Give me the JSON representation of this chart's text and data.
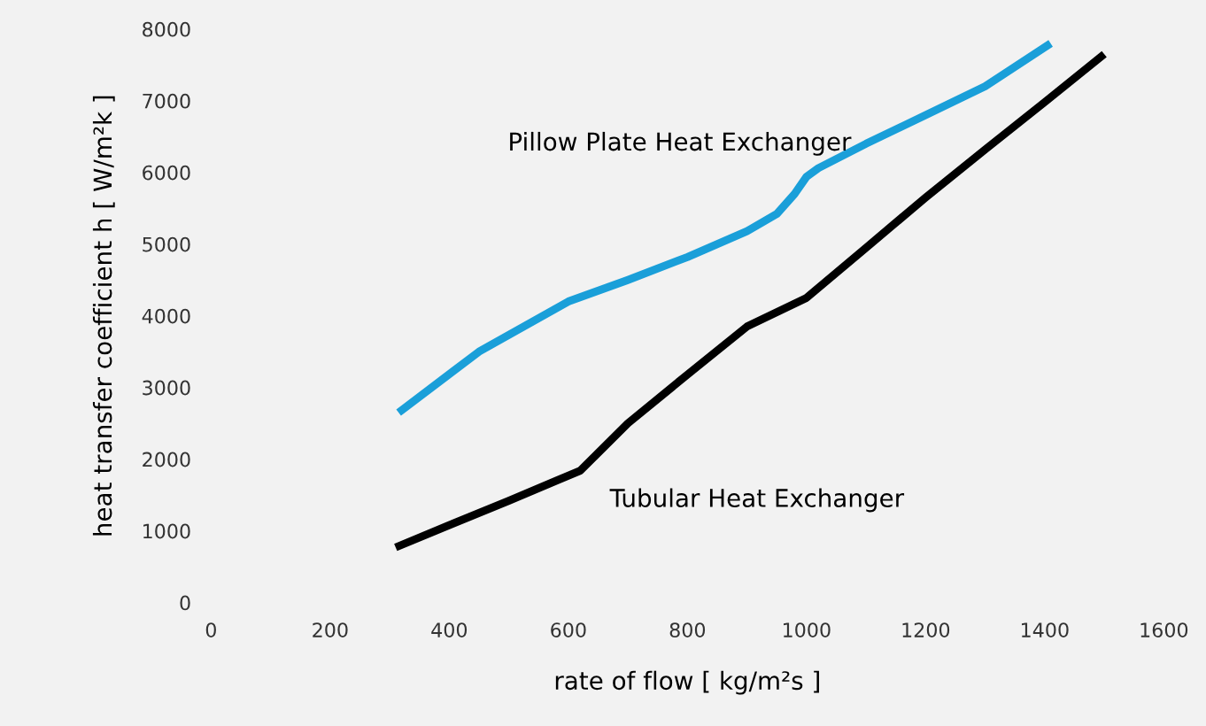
{
  "chart_data": {
    "type": "line",
    "xlabel": "rate of flow [ kg/m²s ]",
    "ylabel": "heat transfer coefficient h [ W/m²k ]",
    "xlim": [
      0,
      1600
    ],
    "ylim": [
      0,
      8000
    ],
    "xticks": [
      0,
      200,
      400,
      600,
      800,
      1000,
      1200,
      1400,
      1600
    ],
    "yticks": [
      0,
      1000,
      2000,
      3000,
      4000,
      5000,
      6000,
      7000,
      8000
    ],
    "grid": false,
    "legend": false,
    "series": [
      {
        "name": "Pillow Plate Heat Exchanger",
        "color": "#1a9fd9",
        "x": [
          315,
          450,
          600,
          700,
          800,
          900,
          950,
          980,
          1000,
          1020,
          1100,
          1200,
          1300,
          1410
        ],
        "values": [
          2650,
          3500,
          4200,
          4500,
          4820,
          5180,
          5420,
          5700,
          5940,
          6060,
          6400,
          6800,
          7200,
          7800
        ]
      },
      {
        "name": "Tubular Heat Exchanger",
        "color": "#000000",
        "x": [
          310,
          400,
          500,
          580,
          620,
          700,
          800,
          900,
          1000,
          1100,
          1200,
          1300,
          1400,
          1500
        ],
        "values": [
          770,
          1080,
          1420,
          1700,
          1840,
          2500,
          3180,
          3850,
          4250,
          4950,
          5650,
          6320,
          6980,
          7650
        ]
      }
    ]
  }
}
